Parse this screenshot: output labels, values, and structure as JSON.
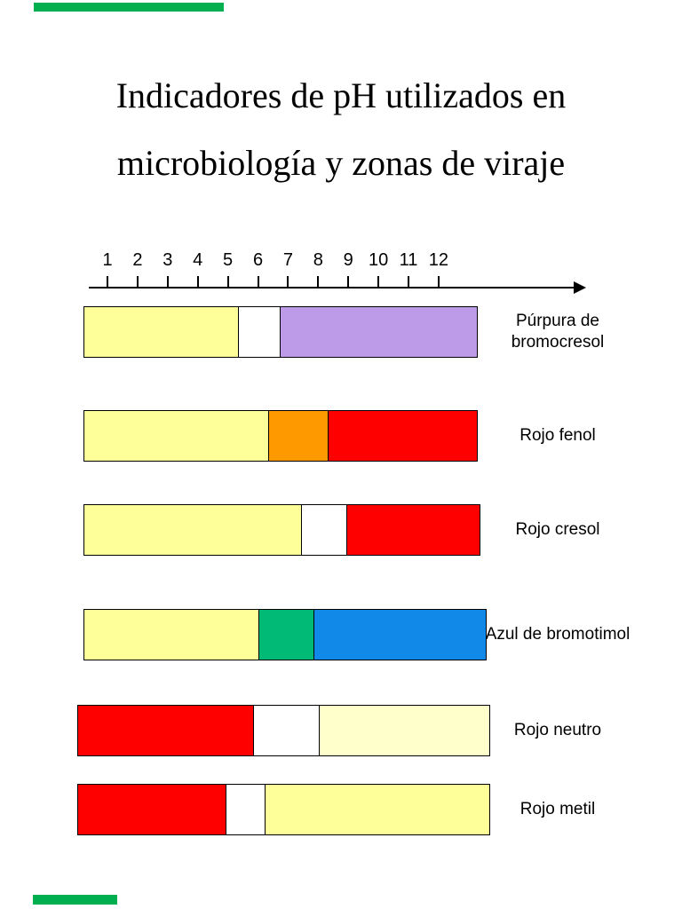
{
  "title": {
    "line1": "Indicadores de pH utilizados en",
    "line2": "microbiología y zonas de viraje"
  },
  "decorations": {
    "strip_color": "#00B050"
  },
  "colors": {
    "background": "#FFFFFF",
    "text": "#000000",
    "axis": "#000000"
  },
  "chart_data": {
    "type": "bar",
    "orientation": "horizontal",
    "title": "Indicadores de pH utilizados en microbiología y zonas de viraje",
    "x_axis": {
      "ticks": [
        "1",
        "2",
        "3",
        "4",
        "5",
        "6",
        "7",
        "8",
        "9",
        "10",
        "11",
        "12"
      ],
      "range": [
        1,
        12
      ],
      "arrow": "right"
    },
    "indicators": [
      {
        "name": "Púrpura de bromocresol",
        "segments": [
          {
            "color_name": "yellow",
            "hex": "#FFFF99",
            "ph_from": 0.2,
            "ph_to": 5.3
          },
          {
            "color_name": "white",
            "hex": "#FFFFFF",
            "ph_from": 5.3,
            "ph_to": 6.7
          },
          {
            "color_name": "purple",
            "hex": "#BE9BE8",
            "ph_from": 6.7,
            "ph_to": 13.3
          }
        ]
      },
      {
        "name": "Rojo fenol",
        "segments": [
          {
            "color_name": "yellow",
            "hex": "#FFFF99",
            "ph_from": 0.2,
            "ph_to": 6.3
          },
          {
            "color_name": "orange",
            "hex": "#FF9900",
            "ph_from": 6.3,
            "ph_to": 8.3
          },
          {
            "color_name": "red",
            "hex": "#FF0000",
            "ph_from": 8.3,
            "ph_to": 13.3
          }
        ]
      },
      {
        "name": "Rojo cresol",
        "segments": [
          {
            "color_name": "yellow",
            "hex": "#FFFF99",
            "ph_from": 0.2,
            "ph_to": 7.4
          },
          {
            "color_name": "white",
            "hex": "#FFFFFF",
            "ph_from": 7.4,
            "ph_to": 8.9
          },
          {
            "color_name": "red",
            "hex": "#FF0000",
            "ph_from": 8.9,
            "ph_to": 13.4
          }
        ]
      },
      {
        "name": "Azul de bromotimol",
        "segments": [
          {
            "color_name": "yellow",
            "hex": "#FFFF99",
            "ph_from": 0.2,
            "ph_to": 6.0
          },
          {
            "color_name": "green",
            "hex": "#00BA75",
            "ph_from": 6.0,
            "ph_to": 7.8
          },
          {
            "color_name": "blue",
            "hex": "#1089E8",
            "ph_from": 7.8,
            "ph_to": 13.6
          }
        ]
      },
      {
        "name": "Rojo neutro",
        "segments": [
          {
            "color_name": "red",
            "hex": "#FF0000",
            "ph_from": 0.0,
            "ph_to": 5.8
          },
          {
            "color_name": "white",
            "hex": "#FFFFFF",
            "ph_from": 5.8,
            "ph_to": 8.0
          },
          {
            "color_name": "pale-yellow",
            "hex": "#FFFFCC",
            "ph_from": 8.0,
            "ph_to": 13.7
          }
        ]
      },
      {
        "name": "Rojo metil",
        "segments": [
          {
            "color_name": "red",
            "hex": "#FF0000",
            "ph_from": 0.0,
            "ph_to": 4.9
          },
          {
            "color_name": "white",
            "hex": "#FFFFFF",
            "ph_from": 4.9,
            "ph_to": 6.2
          },
          {
            "color_name": "yellow",
            "hex": "#FFFF99",
            "ph_from": 6.2,
            "ph_to": 13.7
          }
        ]
      }
    ]
  }
}
